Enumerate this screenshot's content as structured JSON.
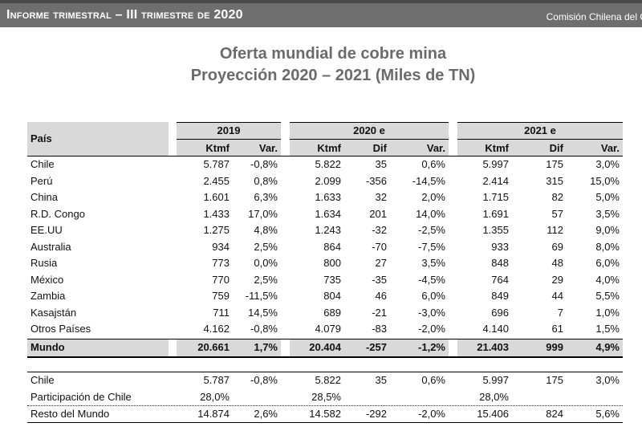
{
  "header": {
    "title": "Informe trimestral – III trimestre de 2020",
    "org": "Comisión Chilena del C"
  },
  "titles": {
    "line1": "Oferta mundial de cobre mina",
    "line2": "Proyección 2020 – 2021 (Miles de TN)"
  },
  "table": {
    "country_header": "País",
    "groups": [
      "2019",
      "2020 e",
      "2021 e"
    ],
    "subheaders": {
      "y2019": [
        "Ktmf",
        "Var."
      ],
      "y2020": [
        "Ktmf",
        "Dif",
        "Var."
      ],
      "y2021": [
        "Ktmf",
        "Dif",
        "Var."
      ]
    },
    "rows": [
      {
        "country": "Chile",
        "k19": "5.787",
        "v19": "-0,8%",
        "k20": "5.822",
        "d20": "35",
        "v20": "0,6%",
        "k21": "5.997",
        "d21": "175",
        "v21": "3,0%"
      },
      {
        "country": "Perú",
        "k19": "2.455",
        "v19": "0,8%",
        "k20": "2.099",
        "d20": "-356",
        "v20": "-14,5%",
        "k21": "2.414",
        "d21": "315",
        "v21": "15,0%"
      },
      {
        "country": "China",
        "k19": "1.601",
        "v19": "6,3%",
        "k20": "1.633",
        "d20": "32",
        "v20": "2,0%",
        "k21": "1.715",
        "d21": "82",
        "v21": "5,0%"
      },
      {
        "country": "R.D. Congo",
        "k19": "1.433",
        "v19": "17,0%",
        "k20": "1.634",
        "d20": "201",
        "v20": "14,0%",
        "k21": "1.691",
        "d21": "57",
        "v21": "3,5%"
      },
      {
        "country": "EE.UU",
        "k19": "1.275",
        "v19": "4,8%",
        "k20": "1.243",
        "d20": "-32",
        "v20": "-2,5%",
        "k21": "1.355",
        "d21": "112",
        "v21": "9,0%"
      },
      {
        "country": "Australia",
        "k19": "934",
        "v19": "2,5%",
        "k20": "864",
        "d20": "-70",
        "v20": "-7,5%",
        "k21": "933",
        "d21": "69",
        "v21": "8,0%"
      },
      {
        "country": "Rusia",
        "k19": "773",
        "v19": "0,0%",
        "k20": "800",
        "d20": "27",
        "v20": "3,5%",
        "k21": "848",
        "d21": "48",
        "v21": "6,0%"
      },
      {
        "country": "México",
        "k19": "770",
        "v19": "2,5%",
        "k20": "735",
        "d20": "-35",
        "v20": "-4,5%",
        "k21": "764",
        "d21": "29",
        "v21": "4,0%"
      },
      {
        "country": "Zambia",
        "k19": "759",
        "v19": "-11,5%",
        "k20": "804",
        "d20": "46",
        "v20": "6,0%",
        "k21": "849",
        "d21": "44",
        "v21": "5,5%"
      },
      {
        "country": "Kasajstán",
        "k19": "711",
        "v19": "14,5%",
        "k20": "689",
        "d20": "-21",
        "v20": "-3,0%",
        "k21": "696",
        "d21": "7",
        "v21": "1,0%"
      },
      {
        "country": "Otros Países",
        "k19": "4.162",
        "v19": "-0,8%",
        "k20": "4.079",
        "d20": "-83",
        "v20": "-2,0%",
        "k21": "4.140",
        "d21": "61",
        "v21": "1,5%"
      }
    ],
    "total": {
      "country": "Mundo",
      "k19": "20.661",
      "v19": "1,7%",
      "k20": "20.404",
      "d20": "-257",
      "v20": "-1,2%",
      "k21": "21.403",
      "d21": "999",
      "v21": "4,9%"
    }
  },
  "summary": {
    "chile": {
      "country": "Chile",
      "k19": "5.787",
      "v19": "-0,8%",
      "k20": "5.822",
      "d20": "35",
      "v20": "0,6%",
      "k21": "5.997",
      "d21": "175",
      "v21": "3,0%"
    },
    "share": {
      "label": "Participación de Chile",
      "p19": "28,0%",
      "p20": "28,5%",
      "p21": "28,0%"
    },
    "rest": {
      "country": "Resto del Mundo",
      "k19": "14.874",
      "v19": "2,6%",
      "k20": "14.582",
      "d20": "-292",
      "v20": "-2,0%",
      "k21": "15.406",
      "d21": "824",
      "v21": "5,6%"
    }
  }
}
